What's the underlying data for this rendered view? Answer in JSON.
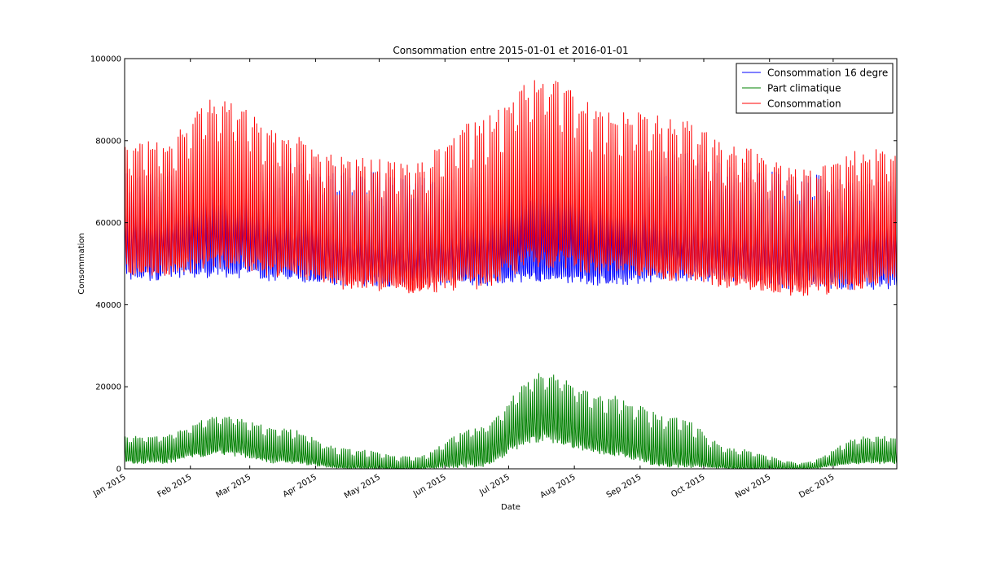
{
  "chart_data": {
    "type": "line",
    "title": "Consommation entre 2015-01-01 et 2016-01-01",
    "xlabel": "Date",
    "ylabel": "Consommation",
    "x_range": [
      "2015-01-01",
      "2015-12-31"
    ],
    "ylim": [
      0,
      100000
    ],
    "yticks": [
      "0",
      "20000",
      "40000",
      "60000",
      "80000",
      "100000"
    ],
    "xticks": [
      "Jan 2015",
      "Feb 2015",
      "Mar 2015",
      "Apr 2015",
      "May 2015",
      "Jun 2015",
      "Jul 2015",
      "Aug 2015",
      "Sep 2015",
      "Oct 2015",
      "Nov 2015",
      "Dec 2015"
    ],
    "xtick_dates": [
      "2015-01-01",
      "2015-02-01",
      "2015-03-01",
      "2015-04-01",
      "2015-05-01",
      "2015-06-01",
      "2015-07-01",
      "2015-08-01",
      "2015-09-01",
      "2015-10-01",
      "2015-11-01",
      "2015-12-01"
    ],
    "grid": false,
    "legend_position": "top-right",
    "sampling": "half-hourly, plotted as daily min–max envelope",
    "series": [
      {
        "name": "Consommation 16 degre",
        "color": "#0000ff",
        "monthly": [
          {
            "month": "2015-01",
            "low": 45000,
            "mean": 56500,
            "high": 73000
          },
          {
            "month": "2015-02",
            "low": 46000,
            "mean": 57500,
            "high": 69000
          },
          {
            "month": "2015-03",
            "low": 45000,
            "mean": 55500,
            "high": 75000
          },
          {
            "month": "2015-04",
            "low": 44000,
            "mean": 54000,
            "high": 74000
          },
          {
            "month": "2015-05",
            "low": 44000,
            "mean": 53000,
            "high": 72000
          },
          {
            "month": "2015-06",
            "low": 44000,
            "mean": 53500,
            "high": 70000
          },
          {
            "month": "2015-07",
            "low": 45000,
            "mean": 55000,
            "high": 74000
          },
          {
            "month": "2015-08",
            "low": 44000,
            "mean": 54000,
            "high": 69000
          },
          {
            "month": "2015-09",
            "low": 45000,
            "mean": 55000,
            "high": 79000
          },
          {
            "month": "2015-10",
            "low": 45000,
            "mean": 54500,
            "high": 74000
          },
          {
            "month": "2015-11",
            "low": 43000,
            "mean": 54500,
            "high": 72000
          },
          {
            "month": "2015-12",
            "low": 43000,
            "mean": 55000,
            "high": 70000
          }
        ]
      },
      {
        "name": "Part climatique",
        "color": "#008000",
        "monthly": [
          {
            "month": "2015-01",
            "low": 1000,
            "mean": 4500,
            "high": 8000
          },
          {
            "month": "2015-02",
            "low": 3000,
            "mean": 8000,
            "high": 13000
          },
          {
            "month": "2015-03",
            "low": 1000,
            "mean": 4500,
            "high": 10000
          },
          {
            "month": "2015-04",
            "low": 0,
            "mean": 800,
            "high": 5000
          },
          {
            "month": "2015-05",
            "low": 0,
            "mean": 200,
            "high": 3000
          },
          {
            "month": "2015-06",
            "low": 0,
            "mean": 5000,
            "high": 10000
          },
          {
            "month": "2015-07",
            "low": 6000,
            "mean": 14000,
            "high": 23500
          },
          {
            "month": "2015-08",
            "low": 3000,
            "mean": 8000,
            "high": 18000
          },
          {
            "month": "2015-09",
            "low": 0,
            "mean": 4000,
            "high": 13000
          },
          {
            "month": "2015-10",
            "low": 0,
            "mean": 500,
            "high": 5000
          },
          {
            "month": "2015-11",
            "low": 0,
            "mean": 300,
            "high": 1500
          },
          {
            "month": "2015-12",
            "low": 1000,
            "mean": 4000,
            "high": 8000
          }
        ]
      },
      {
        "name": "Consommation",
        "color": "#ff0000",
        "monthly": [
          {
            "month": "2015-01",
            "low": 46000,
            "mean": 60000,
            "high": 80000
          },
          {
            "month": "2015-02",
            "low": 48000,
            "mean": 65000,
            "high": 91000
          },
          {
            "month": "2015-03",
            "low": 46000,
            "mean": 60000,
            "high": 82000
          },
          {
            "month": "2015-04",
            "low": 43000,
            "mean": 54500,
            "high": 76000
          },
          {
            "month": "2015-05",
            "low": 42000,
            "mean": 53000,
            "high": 75000
          },
          {
            "month": "2015-06",
            "low": 43000,
            "mean": 58000,
            "high": 86000
          },
          {
            "month": "2015-07",
            "low": 48000,
            "mean": 68000,
            "high": 95500
          },
          {
            "month": "2015-08",
            "low": 46000,
            "mean": 62000,
            "high": 88000
          },
          {
            "month": "2015-09",
            "low": 45000,
            "mean": 58000,
            "high": 86000
          },
          {
            "month": "2015-10",
            "low": 43000,
            "mean": 55000,
            "high": 79000
          },
          {
            "month": "2015-11",
            "low": 41000,
            "mean": 54000,
            "high": 73000
          },
          {
            "month": "2015-12",
            "low": 43000,
            "mean": 58000,
            "high": 78000
          }
        ]
      }
    ]
  }
}
